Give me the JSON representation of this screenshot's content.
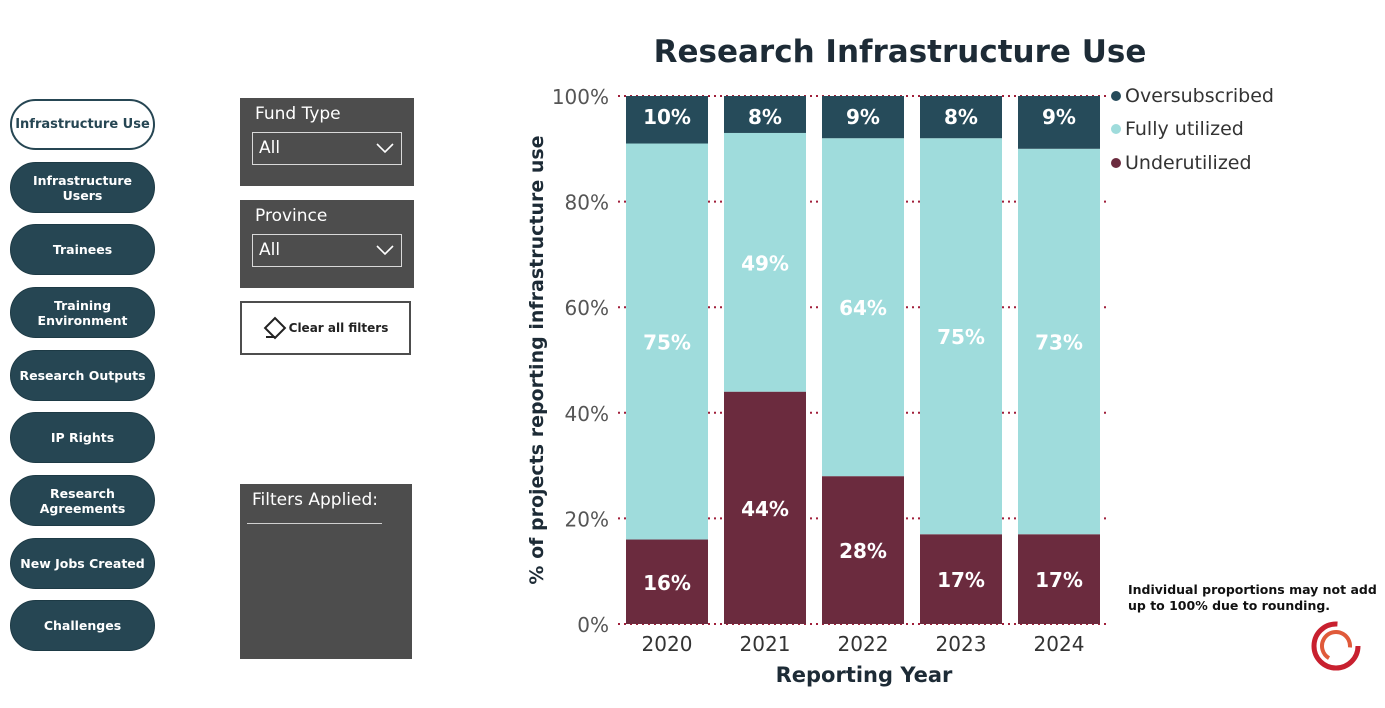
{
  "nav": {
    "items": [
      {
        "label": "Infrastructure Use",
        "active": true
      },
      {
        "label": "Infrastructure Users"
      },
      {
        "label": "Trainees"
      },
      {
        "label": "Training Environment"
      },
      {
        "label": "Research Outputs"
      },
      {
        "label": "IP Rights"
      },
      {
        "label": "Research Agreements"
      },
      {
        "label": "New Jobs Created"
      },
      {
        "label": "Challenges"
      }
    ]
  },
  "filters": {
    "fund_type": {
      "label": "Fund Type",
      "value": "All"
    },
    "province": {
      "label": "Province",
      "value": "All"
    },
    "clear_label": "Clear all filters",
    "applied_label": "Filters Applied:"
  },
  "note": "Individual proportions may not add up to 100% due to rounding.",
  "colors": {
    "oversubscribed": "#264b5a",
    "fully_utilized": "#9fdcdc",
    "underutilized": "#6b2b3e",
    "grid": "#a01f3a",
    "nav": "#264653"
  },
  "chart_data": {
    "type": "bar",
    "stacked": true,
    "title": "Research Infrastructure Use",
    "xlabel": "Reporting Year",
    "ylabel": "% of projects reporting infrastructure use",
    "categories": [
      "2020",
      "2021",
      "2022",
      "2023",
      "2024"
    ],
    "ylim": [
      0,
      100
    ],
    "yticks": [
      "0%",
      "20%",
      "40%",
      "60%",
      "80%",
      "100%"
    ],
    "grid": true,
    "legend_position": "top-right",
    "series": [
      {
        "name": "Underutilized",
        "values": [
          16,
          44,
          28,
          17,
          17
        ],
        "labels": [
          "16%",
          "44%",
          "28%",
          "17%",
          "17%"
        ]
      },
      {
        "name": "Fully utilized",
        "values": [
          75,
          49,
          64,
          75,
          73
        ],
        "labels": [
          "75%",
          "49%",
          "64%",
          "75%",
          "73%"
        ]
      },
      {
        "name": "Oversubscribed",
        "values": [
          10,
          8,
          9,
          8,
          9
        ],
        "labels": [
          "10%",
          "8%",
          "9%",
          "8%",
          "9%"
        ]
      }
    ],
    "legend": [
      "Oversubscribed",
      "Fully utilized",
      "Underutilized"
    ]
  }
}
